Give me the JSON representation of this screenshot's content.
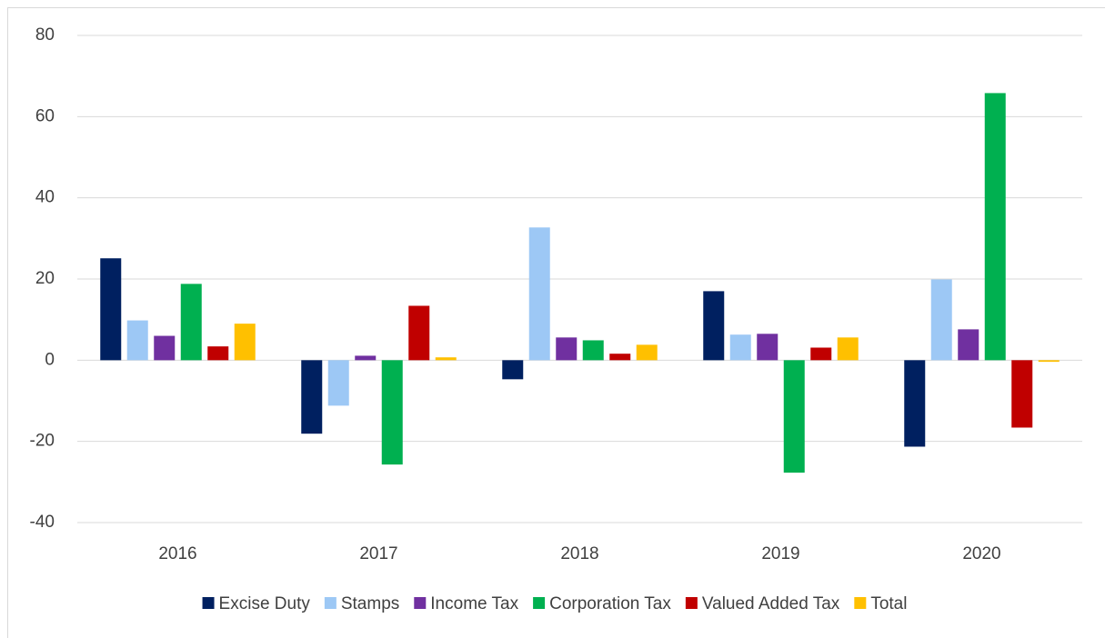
{
  "chart_data": {
    "type": "bar",
    "categories": [
      "2016",
      "2017",
      "2018",
      "2019",
      "2020"
    ],
    "series": [
      {
        "name": "Excise Duty",
        "color": "#002060",
        "values": [
          25.1,
          -18.1,
          -4.7,
          17.0,
          -21.3
        ]
      },
      {
        "name": "Stamps",
        "color": "#9DC8F5",
        "values": [
          9.8,
          -11.2,
          32.7,
          6.3,
          19.9
        ]
      },
      {
        "name": "Income Tax",
        "color": "#7030A0",
        "values": [
          6.0,
          1.1,
          5.6,
          6.5,
          7.6
        ]
      },
      {
        "name": "Corporation Tax",
        "color": "#00B050",
        "values": [
          18.8,
          -25.7,
          4.9,
          -27.7,
          65.8
        ]
      },
      {
        "name": "Valued Added Tax",
        "color": "#C00000",
        "values": [
          3.4,
          13.4,
          1.6,
          3.1,
          -16.6
        ]
      },
      {
        "name": "Total",
        "color": "#FFC000",
        "values": [
          9.0,
          0.7,
          3.8,
          5.6,
          -0.4
        ]
      }
    ],
    "ylim": [
      -40,
      80
    ],
    "yticks": [
      -40,
      -20,
      0,
      20,
      40,
      60,
      80
    ],
    "grid": true,
    "legend": "bottom"
  }
}
